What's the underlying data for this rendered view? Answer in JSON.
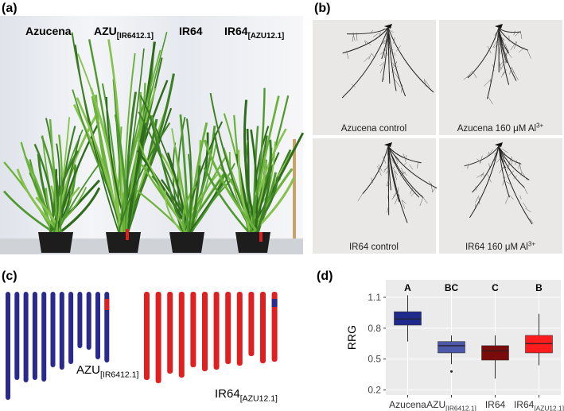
{
  "panel_labels": [
    "(a)",
    "(b)",
    "(c)",
    "(d)"
  ],
  "photo_a": {
    "labels": [
      {
        "text": "Azucena"
      },
      {
        "text": "AZU",
        "sub": "[IR6412.1]"
      },
      {
        "text": "IR64"
      },
      {
        "text": "IR64",
        "sub": "[AZU12.1]"
      }
    ]
  },
  "photo_b": {
    "captions": [
      {
        "text": "Azucena control"
      },
      {
        "text": "Azucena 160 μM Al",
        "sup": "3+"
      },
      {
        "text": "IR64 control"
      },
      {
        "text": "IR64 160 μM Al",
        "sup": "3+"
      }
    ]
  },
  "diagram_c": {
    "labels": [
      {
        "text": "AZU",
        "sub": "[IR6412.1]"
      },
      {
        "text": "IR64",
        "sub": "[AZU12.1]"
      }
    ]
  },
  "chart_data": {
    "type": "box",
    "ylabel": "RRG",
    "categories": [
      {
        "text": "Azucena"
      },
      {
        "text": "AZU",
        "sub": "[IR6412.1]"
      },
      {
        "text": "IR64"
      },
      {
        "text": "IR64",
        "sub": "[AZU12.1]"
      }
    ],
    "boxes": [
      {
        "color": "#1f2a8c",
        "letter": "A",
        "min": 0.67,
        "q1": 0.83,
        "median": 0.89,
        "q3": 0.96,
        "max": 1.12,
        "outliers": []
      },
      {
        "color": "#4b57a8",
        "letter": "BC",
        "min": 0.45,
        "q1": 0.56,
        "median": 0.63,
        "q3": 0.67,
        "max": 0.73,
        "outliers": [
          0.38
        ]
      },
      {
        "color": "#7a0b0b",
        "letter": "C",
        "min": 0.31,
        "q1": 0.49,
        "median": 0.58,
        "q3": 0.63,
        "max": 0.73,
        "outliers": []
      },
      {
        "color": "#ff1c1c",
        "letter": "B",
        "min": 0.44,
        "q1": 0.56,
        "median": 0.65,
        "q3": 0.73,
        "max": 0.94,
        "outliers": []
      }
    ],
    "ylim": [
      0.15,
      1.27
    ],
    "yticks": [
      0.2,
      0.5,
      0.8,
      1.1
    ],
    "grid": true
  }
}
